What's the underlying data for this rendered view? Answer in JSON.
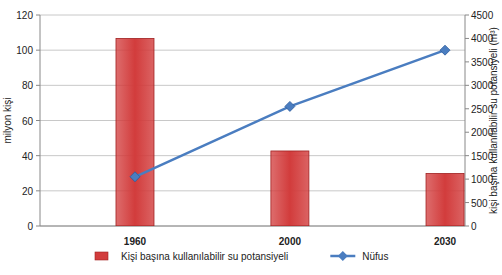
{
  "chart_data": {
    "type": "bar",
    "categories": [
      "1960",
      "2000",
      "2030"
    ],
    "y_label": "milyon kişi",
    "y2_label": "kişi başına kullanılabilir su potansiyeli (m³)",
    "ylim": [
      0,
      120
    ],
    "yticks": [
      0,
      20,
      40,
      60,
      80,
      100,
      120
    ],
    "y2lim": [
      0,
      4500
    ],
    "y2ticks": [
      0,
      500,
      1000,
      1500,
      2000,
      2500,
      3000,
      3500,
      4000,
      4500
    ],
    "grid": true,
    "legend": "bottom",
    "series": [
      {
        "name": "Kişi başına kullanılabilir su potansiyeli",
        "type": "bar",
        "axis": "y2",
        "color": "#d23c3c",
        "values": [
          4000,
          1600,
          1120
        ]
      },
      {
        "name": "Nüfus",
        "type": "line",
        "axis": "y",
        "color": "#4a7dc0",
        "marker": "diamond",
        "values": [
          28,
          68,
          100
        ]
      }
    ]
  }
}
